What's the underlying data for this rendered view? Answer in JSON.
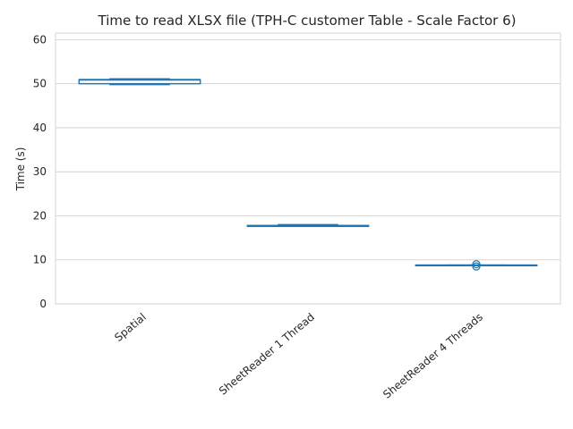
{
  "chart_data": {
    "type": "box",
    "title": "Time to read XLSX file (TPH-C customer Table - Scale Factor 6)",
    "xlabel": "",
    "ylabel": "Time (s)",
    "ylim": [
      0,
      61.5
    ],
    "yticks": [
      0,
      10,
      20,
      30,
      40,
      50,
      60
    ],
    "grid": "y",
    "color": "#1f77b4",
    "categories": [
      "Spatial",
      "SheetReader 1 Thread",
      "SheetReader 4 Threads"
    ],
    "boxes": [
      {
        "whisker_low": 49.8,
        "q1": 50.0,
        "median": 50.9,
        "q3": 50.9,
        "whisker_high": 51.1,
        "outliers": []
      },
      {
        "whisker_low": 17.6,
        "q1": 17.6,
        "median": 17.7,
        "q3": 17.8,
        "whisker_high": 18.0,
        "outliers": []
      },
      {
        "whisker_low": 8.7,
        "q1": 8.7,
        "median": 8.75,
        "q3": 8.8,
        "whisker_high": 8.8,
        "outliers": [
          8.5,
          9.0
        ]
      }
    ]
  }
}
